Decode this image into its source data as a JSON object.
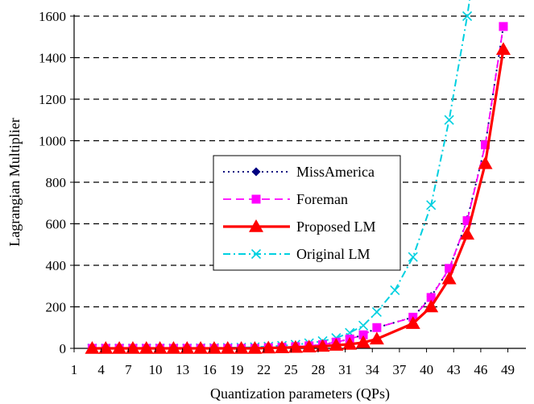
{
  "chart_data": {
    "type": "line",
    "xlabel": "Quantization parameters (QPs)",
    "ylabel": "Lagrangian Multiplier",
    "xlim": [
      1,
      51
    ],
    "ylim": [
      0,
      1600
    ],
    "xticks": [
      1,
      4,
      7,
      10,
      13,
      16,
      19,
      22,
      25,
      28,
      31,
      34,
      37,
      40,
      43,
      46,
      49
    ],
    "yticks": [
      0,
      200,
      400,
      600,
      800,
      1000,
      1200,
      1400,
      1600
    ],
    "grid": "horizontal dashed",
    "legend_position": "center-left",
    "series": [
      {
        "name": "MissAmerica",
        "color": "#000080",
        "line": "dotted",
        "marker": "diamond",
        "x": [
          3,
          4.5,
          6,
          7.5,
          9,
          10.5,
          12,
          13.5,
          15,
          16.5,
          18,
          19.5,
          21,
          22.5,
          24,
          25.5,
          27,
          28.5,
          30,
          31.5,
          33,
          34.5,
          38.5,
          40.5,
          42.5,
          44.5,
          46.5,
          48.5
        ],
        "y": [
          0,
          0,
          0,
          0,
          0,
          0,
          0,
          0,
          0,
          0,
          0,
          0,
          0,
          3,
          5,
          8,
          12,
          18,
          30,
          45,
          65,
          100,
          150,
          250,
          380,
          620,
          980,
          1550
        ]
      },
      {
        "name": "Foreman",
        "color": "#ff00ff",
        "line": "dashed",
        "marker": "square",
        "x": [
          3,
          4.5,
          6,
          7.5,
          9,
          10.5,
          12,
          13.5,
          15,
          16.5,
          18,
          19.5,
          21,
          22.5,
          24,
          25.5,
          27,
          28.5,
          30,
          31.5,
          33,
          34.5,
          38.5,
          40.5,
          42.5,
          44.5,
          46.5,
          48.5
        ],
        "y": [
          0,
          0,
          0,
          0,
          0,
          0,
          0,
          0,
          0,
          0,
          0,
          0,
          0,
          3,
          5,
          8,
          12,
          18,
          30,
          45,
          65,
          100,
          150,
          245,
          385,
          615,
          980,
          1550
        ]
      },
      {
        "name": "Proposed LM",
        "color": "#ff0000",
        "line": "solid",
        "marker": "triangle",
        "x": [
          3,
          4.5,
          6,
          7.5,
          9,
          10.5,
          12,
          13.5,
          15,
          16.5,
          18,
          19.5,
          21,
          22.5,
          24,
          25.5,
          27,
          28.5,
          30,
          31.5,
          33,
          34.5,
          38.5,
          40.5,
          42.5,
          44.5,
          46.5,
          48.5
        ],
        "y": [
          0,
          0,
          0,
          0,
          0,
          0,
          0,
          0,
          0,
          0,
          0,
          0,
          0,
          2,
          3,
          5,
          7,
          10,
          15,
          20,
          28,
          45,
          120,
          200,
          335,
          550,
          890,
          1440
        ]
      },
      {
        "name": "Original LM",
        "color": "#00d0e0",
        "line": "dash-dot",
        "marker": "x",
        "x": [
          3,
          4.5,
          6,
          7.5,
          9,
          10.5,
          12,
          13.5,
          15,
          16.5,
          18,
          19.5,
          21,
          22.5,
          24,
          25.5,
          27,
          28.5,
          30,
          31.5,
          33,
          34.5,
          36.5,
          38.5,
          40.5,
          42.5,
          44.5
        ],
        "y": [
          0,
          0,
          0,
          0,
          0,
          0,
          0,
          0,
          1,
          2,
          3,
          4,
          6,
          9,
          13,
          18,
          25,
          35,
          50,
          75,
          110,
          175,
          280,
          440,
          690,
          1100,
          1600
        ]
      }
    ]
  }
}
